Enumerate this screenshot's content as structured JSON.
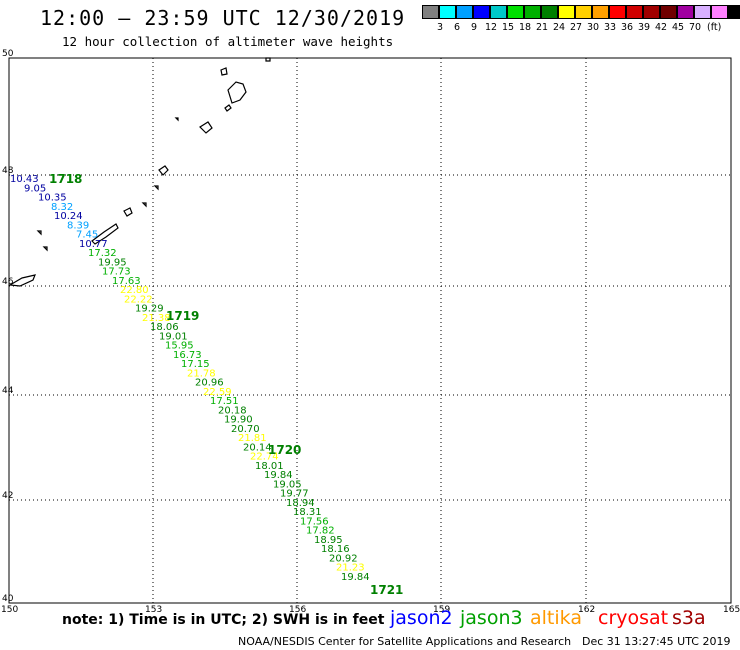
{
  "title": "12:00 — 23:59 UTC 12/30/2019",
  "subtitle": "12 hour collection of altimeter wave heights",
  "legend": {
    "colors": [
      "#808080",
      "#00ffff",
      "#00a0ff",
      "#0000ff",
      "#00c8c8",
      "#00e000",
      "#00b000",
      "#008000",
      "#ffff00",
      "#ffd000",
      "#ffa000",
      "#ff0000",
      "#d00000",
      "#a00000",
      "#700000",
      "#a000a0",
      "#d8b0ff",
      "#ff80ff",
      "#000000"
    ],
    "ticks": [
      "3",
      "6",
      "9",
      "12",
      "15",
      "18",
      "21",
      "24",
      "27",
      "30",
      "33",
      "36",
      "39",
      "42",
      "45",
      "70"
    ],
    "unit": "(ft)"
  },
  "axes": {
    "lon_labels": [
      "150",
      "153",
      "156",
      "159",
      "162",
      "165"
    ],
    "lat_labels": [
      "50",
      "48",
      "46",
      "44",
      "42",
      "40"
    ]
  },
  "tracks": [
    {
      "label": "1718",
      "color": "#008000"
    },
    {
      "label": "1719",
      "color": "#008000"
    },
    {
      "label": "1720",
      "color": "#008000"
    },
    {
      "label": "1721",
      "color": "#008000"
    }
  ],
  "observations": [
    {
      "v": "10.43",
      "c": "#0000a0"
    },
    {
      "v": "9.05",
      "c": "#0000a0"
    },
    {
      "v": "10.35",
      "c": "#0000a0"
    },
    {
      "v": "8.32",
      "c": "#00a0ff"
    },
    {
      "v": "10.24",
      "c": "#0000a0"
    },
    {
      "v": "8.39",
      "c": "#00a0ff"
    },
    {
      "v": "7.45",
      "c": "#00a0ff"
    },
    {
      "v": "10.77",
      "c": "#0000a0"
    },
    {
      "v": "17.32",
      "c": "#00b000"
    },
    {
      "v": "19.95",
      "c": "#008000"
    },
    {
      "v": "17.73",
      "c": "#00b000"
    },
    {
      "v": "17.63",
      "c": "#00b000"
    },
    {
      "v": "22.80",
      "c": "#ffff00"
    },
    {
      "v": "22.22",
      "c": "#ffff00"
    },
    {
      "v": "19.29",
      "c": "#008000"
    },
    {
      "v": "21.38",
      "c": "#ffff00"
    },
    {
      "v": "18.06",
      "c": "#008000"
    },
    {
      "v": "19.01",
      "c": "#008000"
    },
    {
      "v": "15.95",
      "c": "#00b000"
    },
    {
      "v": "16.73",
      "c": "#00b000"
    },
    {
      "v": "17.15",
      "c": "#00b000"
    },
    {
      "v": "21.78",
      "c": "#ffff00"
    },
    {
      "v": "20.96",
      "c": "#008000"
    },
    {
      "v": "22.59",
      "c": "#ffff00"
    },
    {
      "v": "17.51",
      "c": "#00b000"
    },
    {
      "v": "20.18",
      "c": "#008000"
    },
    {
      "v": "19.90",
      "c": "#008000"
    },
    {
      "v": "20.70",
      "c": "#008000"
    },
    {
      "v": "21.81",
      "c": "#ffff00"
    },
    {
      "v": "20.14",
      "c": "#008000"
    },
    {
      "v": "22.74",
      "c": "#ffff00"
    },
    {
      "v": "18.01",
      "c": "#008000"
    },
    {
      "v": "19.84",
      "c": "#008000"
    },
    {
      "v": "19.05",
      "c": "#008000"
    },
    {
      "v": "19.77",
      "c": "#008000"
    },
    {
      "v": "18.94",
      "c": "#008000"
    },
    {
      "v": "18.31",
      "c": "#008000"
    },
    {
      "v": "17.56",
      "c": "#00b000"
    },
    {
      "v": "17.82",
      "c": "#00b000"
    },
    {
      "v": "18.95",
      "c": "#008000"
    },
    {
      "v": "18.16",
      "c": "#008000"
    },
    {
      "v": "20.92",
      "c": "#008000"
    },
    {
      "v": "21.23",
      "c": "#ffff00"
    },
    {
      "v": "19.84",
      "c": "#008000"
    }
  ],
  "footer": {
    "note": "note:  1) Time is in UTC;  2) SWH is in feet",
    "satellites": [
      {
        "name": "jason2",
        "color": "#0000ff"
      },
      {
        "name": "jason3",
        "color": "#00a000"
      },
      {
        "name": "altika",
        "color": "#ff9900"
      },
      {
        "name": "cryosat",
        "color": "#ff0000"
      },
      {
        "name": "s3a",
        "color": "#a00000"
      }
    ],
    "credit": "NOAA/NESDIS Center for Satellite Applications and Research",
    "timestamp": "Dec 31 13:27:45 UTC 2019"
  }
}
